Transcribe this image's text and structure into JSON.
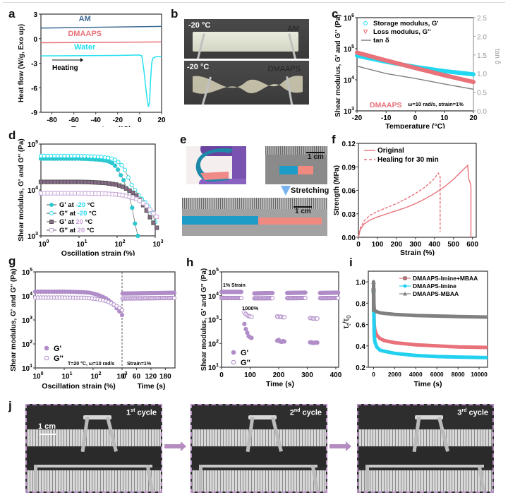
{
  "figure": {
    "panel_labels": [
      "a",
      "b",
      "c",
      "d",
      "e",
      "f",
      "g",
      "h",
      "i",
      "j"
    ]
  },
  "photos": {
    "b": {
      "top_temp": "-20 °C",
      "top_label": "AM",
      "bottom_temp": "-20 °C",
      "bottom_label": "DMAAPS"
    },
    "e": {
      "scale_top": "1 cm",
      "arrow_label": "Stretching",
      "scale_bottom": "1 cm",
      "colors": {
        "blue": "#1f8fb0",
        "pink": "#f08a80"
      }
    },
    "j": {
      "scale": "1 cm",
      "cycles": [
        {
          "num": "1",
          "sup": "st",
          "word": "cycle"
        },
        {
          "num": "2",
          "sup": "nd",
          "word": "cycle"
        },
        {
          "num": "3",
          "sup": "rd",
          "word": "cycle"
        }
      ],
      "border_color": "#b48cc0"
    }
  },
  "chart_data": [
    {
      "id": "a",
      "type": "line",
      "title": "",
      "xlabel": "Temperature (°C)",
      "ylabel": "Heat flow (W/g, Exo up)",
      "xlim": [
        -90,
        20
      ],
      "ylim": [
        -9,
        3
      ],
      "xticks": [
        -80,
        -60,
        -40,
        -20,
        0,
        20
      ],
      "yticks": [
        3,
        0,
        -3,
        -6,
        -9
      ],
      "annotation": "Heating",
      "series": [
        {
          "name": "AM",
          "color": "#3d6a94",
          "x": [
            -90,
            20
          ],
          "y": [
            1.3,
            1.5
          ]
        },
        {
          "name": "DMAAPS",
          "color": "#e8717a",
          "x": [
            -90,
            20
          ],
          "y": [
            -0.5,
            -0.4
          ]
        },
        {
          "name": "Water",
          "color": "#22e0f0",
          "x": [
            -90,
            -20,
            0,
            2,
            4,
            6,
            7,
            8,
            9,
            10,
            11,
            12,
            14,
            16,
            20
          ],
          "y": [
            -2.1,
            -2.05,
            -2.0,
            -2.1,
            -4,
            -6.5,
            -7.5,
            -8.3,
            -7.8,
            -5,
            -3,
            -2.4,
            -2.25,
            -2.2,
            -2.2
          ]
        }
      ]
    },
    {
      "id": "c",
      "type": "line",
      "xlabel": "Temperature (°C)",
      "ylabel": "Shear modulus, G' and G'' (Pa)",
      "ylabel_right": "tan δ",
      "xlim": [
        -20,
        20
      ],
      "ylim_log": [
        3,
        6
      ],
      "ylim_right": [
        0,
        2.5
      ],
      "xticks": [
        -20,
        -10,
        0,
        10,
        20
      ],
      "yticks_log": [
        3,
        4,
        5,
        6
      ],
      "yticks_right": [
        0.0,
        0.5,
        1.0,
        1.5,
        2.0,
        2.5
      ],
      "annotations": [
        "DMAAPS",
        "ω=10 rad/s, strain=1%"
      ],
      "series": [
        {
          "name": "Storage modulus, G'",
          "marker": "circle-open",
          "color": "#22d8f0",
          "x": [
            -20,
            -10,
            0,
            10,
            20
          ],
          "y": [
            60000,
            38000,
            26000,
            19000,
            15000
          ],
          "axis": "left"
        },
        {
          "name": "Loss modulus, G''",
          "marker": "triangle-down-open",
          "color": "#e8717a",
          "x": [
            -20,
            -10,
            0,
            10,
            20
          ],
          "y": [
            75000,
            42000,
            24000,
            14000,
            8500
          ],
          "axis": "left"
        },
        {
          "name": "tan δ",
          "marker": "line",
          "color": "#808080",
          "x": [
            -20,
            -10,
            0,
            10,
            20
          ],
          "y": [
            1.2,
            1.0,
            0.87,
            0.72,
            0.58
          ],
          "axis": "right"
        }
      ]
    },
    {
      "id": "d",
      "type": "scatter",
      "xlabel": "Oscillation strain (%)",
      "ylabel": "Shear modulus, G' and G'' (Pa)",
      "xlim_log": [
        0,
        3
      ],
      "ylim_log": [
        3,
        5
      ],
      "xticks_log": [
        0,
        1,
        2,
        3
      ],
      "yticks_log": [
        3,
        4,
        5
      ],
      "series": [
        {
          "name": "G' at -20 °C",
          "temp": "-20",
          "prefix": "G' at ",
          "suffix": " °C",
          "marker": "circle-filled",
          "color": "#2ec8d0",
          "x": [
            1,
            2,
            5,
            10,
            20,
            40,
            60,
            80,
            100,
            120,
            150,
            200,
            250,
            300,
            350
          ],
          "y": [
            48000,
            48000,
            48000,
            48000,
            47000,
            45000,
            42000,
            37000,
            30000,
            22000,
            16000,
            8000,
            4000,
            1700,
            1000
          ]
        },
        {
          "name": "G'' at -20 °C",
          "temp": "-20",
          "prefix": "G'' at ",
          "suffix": " °C",
          "marker": "circle-open",
          "color": "#22e0f0",
          "x": [
            1,
            2,
            5,
            10,
            20,
            40,
            60,
            80,
            100,
            150,
            250,
            400,
            600,
            800,
            1000
          ],
          "y": [
            55000,
            55000,
            55000,
            55000,
            54000,
            52000,
            50000,
            47000,
            43000,
            31000,
            12000,
            7000,
            5000,
            3500,
            2000
          ]
        },
        {
          "name": "G' at 20 °C",
          "temp": "20",
          "prefix": "G' at ",
          "suffix": " °C",
          "marker": "square-filled",
          "color": "#8a6a8a",
          "x": [
            1,
            2,
            5,
            10,
            20,
            50,
            100,
            150,
            200,
            300,
            400,
            600,
            800,
            1100
          ],
          "y": [
            15000,
            15000,
            15000,
            15000,
            14800,
            14200,
            13000,
            11500,
            10000,
            8000,
            6000,
            3500,
            2200,
            1500
          ]
        },
        {
          "name": "G'' at 20 °C",
          "temp": "20",
          "prefix": "G'' at ",
          "suffix": " °C",
          "marker": "square-open",
          "color": "#c8a8d8",
          "x": [
            1,
            2,
            5,
            10,
            20,
            50,
            100,
            150,
            200,
            300,
            400,
            600,
            800,
            1100
          ],
          "y": [
            8500,
            8500,
            8500,
            8500,
            8400,
            8300,
            8000,
            7600,
            7200,
            6500,
            5800,
            4500,
            3400,
            2600
          ]
        }
      ]
    },
    {
      "id": "f",
      "type": "line",
      "xlabel": "Strain (%)",
      "ylabel": "Strength (MPa)",
      "xlim": [
        0,
        620
      ],
      "ylim": [
        0,
        0.12
      ],
      "xticks": [
        0,
        100,
        200,
        300,
        400,
        500,
        600
      ],
      "yticks": [
        "0.00",
        "0.03",
        "0.06",
        "0.09",
        "0.12"
      ],
      "series": [
        {
          "name": "Original",
          "style": "solid",
          "color": "#e8717a",
          "x": [
            0,
            10,
            30,
            60,
            100,
            150,
            200,
            250,
            300,
            350,
            400,
            450,
            500,
            550,
            575,
            580,
            590,
            592,
            592
          ],
          "y": [
            0,
            0.01,
            0.017,
            0.022,
            0.026,
            0.03,
            0.034,
            0.038,
            0.043,
            0.049,
            0.056,
            0.064,
            0.074,
            0.086,
            0.092,
            0.075,
            0.068,
            0.064,
            0
          ]
        },
        {
          "name": "Healing for 30 min",
          "style": "dashed",
          "color": "#e8717a",
          "x": [
            0,
            10,
            30,
            60,
            100,
            150,
            200,
            250,
            300,
            350,
            400,
            420,
            428,
            430,
            430
          ],
          "y": [
            0,
            0.012,
            0.021,
            0.028,
            0.033,
            0.038,
            0.043,
            0.049,
            0.056,
            0.064,
            0.075,
            0.082,
            0.079,
            0.077,
            0.007
          ]
        }
      ]
    },
    {
      "id": "g",
      "type": "scatter",
      "xlabel_left": "Oscillation strain (%)",
      "xlabel_right": "Time (s)",
      "ylabel": "Shear modulus, G' and G'' (Pa)",
      "xlim_log_left": [
        0,
        3
      ],
      "xlim_right": [
        0,
        220
      ],
      "ylim_log": [
        1,
        5
      ],
      "xticks_log_left": [
        0,
        1,
        2,
        3
      ],
      "xticks_right": [
        0,
        60,
        120,
        180
      ],
      "yticks_log": [
        1,
        2,
        3,
        4,
        5
      ],
      "annotations": [
        "T=20 °C, ω=10 rad/s",
        "Strain=1%"
      ],
      "series": [
        {
          "name": "G'",
          "marker": "circle-filled",
          "color": "#b08cc8",
          "left": {
            "x": [
              1,
              2,
              5,
              10,
              20,
              50,
              80,
              100,
              150,
              200,
              300,
              500,
              800,
              1000
            ],
            "y": [
              15000,
              15000,
              15000,
              15000,
              14800,
              14200,
              13500,
              12500,
              11000,
              9500,
              7500,
              4500,
              2300,
              1600
            ]
          },
          "right": {
            "t": [
              0,
              220
            ],
            "y": [
              12500,
              13500
            ]
          }
        },
        {
          "name": "G''",
          "marker": "circle-open",
          "color": "#b08cc8",
          "left": {
            "x": [
              1,
              2,
              5,
              10,
              20,
              50,
              80,
              100,
              150,
              200,
              300,
              500,
              800,
              1000
            ],
            "y": [
              8500,
              8500,
              8500,
              8500,
              8400,
              8300,
              8000,
              7700,
              7200,
              6800,
              6000,
              4500,
              3200,
              2600
            ]
          },
          "right": {
            "t": [
              0,
              220
            ],
            "y": [
              7800,
              8200
            ]
          }
        }
      ]
    },
    {
      "id": "h",
      "type": "scatter",
      "xlabel": "Time (s)",
      "ylabel": "Shear modulus, G' and G'' (Pa)",
      "xlim": [
        0,
        410
      ],
      "ylim_log": [
        1,
        5
      ],
      "xticks": [
        0,
        100,
        200,
        300,
        400
      ],
      "yticks_log": [
        1,
        2,
        3,
        4,
        5
      ],
      "annotations": [
        "1% Strain",
        "1000%"
      ],
      "series": [
        {
          "name": "G'",
          "marker": "circle-filled",
          "color": "#b08cc8",
          "segments": [
            {
              "t": [
                0,
                70
              ],
              "y": [
                14500,
                14500
              ]
            },
            {
              "t": [
                80,
                85,
                90,
                95,
                100,
                105
              ],
              "y": [
                650,
                400,
                280,
                200,
                180,
                170
              ],
              "high": false
            },
            {
              "t": [
                115,
                180
              ],
              "y": [
                12500,
                13000
              ]
            },
            {
              "t": [
                195,
                200,
                205,
                210,
                215,
                220
              ],
              "y": [
                130,
                140,
                120,
                115,
                125,
                120
              ],
              "high": false
            },
            {
              "t": [
                230,
                295
              ],
              "y": [
                13000,
                13500
              ]
            },
            {
              "t": [
                310,
                315,
                320,
                325,
                330,
                335
              ],
              "y": [
                110,
                110,
                105,
                105,
                108,
                108
              ],
              "high": false
            },
            {
              "t": [
                345,
                410
              ],
              "y": [
                13000,
                13500
              ]
            }
          ]
        },
        {
          "name": "G''",
          "marker": "circle-open",
          "color": "#b08cc8",
          "segments": [
            {
              "t": [
                0,
                70
              ],
              "y": [
                8000,
                8000
              ]
            },
            {
              "t": [
                80,
                85,
                90,
                95,
                100,
                105
              ],
              "y": [
                2000,
                1700,
                1500,
                1400,
                1350,
                1300
              ],
              "high": false
            },
            {
              "t": [
                115,
                180
              ],
              "y": [
                7800,
                7900
              ]
            },
            {
              "t": [
                195,
                200,
                205,
                210,
                215,
                220
              ],
              "y": [
                1350,
                1300,
                1300,
                1300,
                1250,
                1250
              ],
              "high": false
            },
            {
              "t": [
                230,
                295
              ],
              "y": [
                7900,
                8000
              ]
            },
            {
              "t": [
                310,
                315,
                320,
                325,
                330,
                335
              ],
              "y": [
                1150,
                1150,
                1100,
                1100,
                1100,
                1100
              ],
              "high": false
            },
            {
              "t": [
                345,
                410
              ],
              "y": [
                7900,
                8000
              ]
            }
          ]
        }
      ]
    },
    {
      "id": "i",
      "type": "line",
      "xlabel": "Time (s)",
      "ylabel": "τt/τ0",
      "ylabel_main": "τ",
      "ylabel_sub1": "t",
      "ylabel_sub2": "0",
      "xlim": [
        -500,
        10800
      ],
      "ylim": [
        0.2,
        1.1
      ],
      "xticks": [
        0,
        2000,
        4000,
        6000,
        8000,
        10000
      ],
      "yticks": [
        "0.2",
        "0.4",
        "0.6",
        "0.8",
        "1.0"
      ],
      "series": [
        {
          "name": "DMAAPS-Imine+MBAA",
          "marker": "square",
          "color": "#e8717a",
          "x": [
            0,
            30,
            60,
            120,
            300,
            600,
            1000,
            2000,
            3000,
            4000,
            6000,
            8000,
            10800
          ],
          "y": [
            0.92,
            0.75,
            0.6,
            0.55,
            0.5,
            0.47,
            0.45,
            0.43,
            0.42,
            0.41,
            0.4,
            0.39,
            0.385
          ]
        },
        {
          "name": "DMAAPS-Imine",
          "marker": "circle",
          "color": "#22d0f0",
          "x": [
            0,
            30,
            60,
            120,
            300,
            600,
            1000,
            2000,
            3000,
            4000,
            6000,
            8000,
            10800
          ],
          "y": [
            0.9,
            0.7,
            0.5,
            0.44,
            0.39,
            0.36,
            0.35,
            0.33,
            0.32,
            0.31,
            0.3,
            0.295,
            0.29
          ]
        },
        {
          "name": "DMAAPS-MBAA",
          "marker": "triangle",
          "color": "#808080",
          "x": [
            0,
            30,
            60,
            120,
            300,
            600,
            1000,
            2000,
            3000,
            4000,
            6000,
            8000,
            10800
          ],
          "y": [
            1.0,
            0.8,
            0.75,
            0.73,
            0.72,
            0.71,
            0.705,
            0.695,
            0.69,
            0.685,
            0.68,
            0.675,
            0.67
          ]
        }
      ]
    }
  ]
}
